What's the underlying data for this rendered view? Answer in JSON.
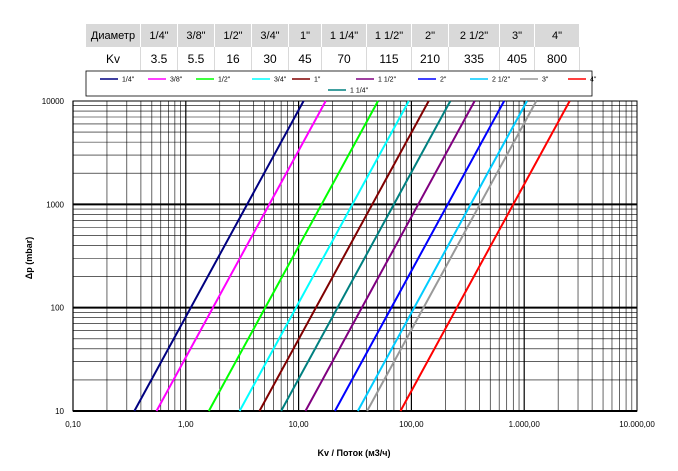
{
  "table": {
    "row_headers": [
      "Диаметр",
      "Kv"
    ],
    "sizes": [
      "1/4\"",
      "3/8\"",
      "1/2\"",
      "3/4\"",
      "1\"",
      "1 1/4\"",
      "1 1/2\"",
      "2\"",
      "2 1/2\"",
      "3\"",
      "4\""
    ],
    "kv": [
      "3.5",
      "5.5",
      "16",
      "30",
      "45",
      "70",
      "115",
      "210",
      "335",
      "405",
      "800"
    ]
  },
  "chart_data": {
    "type": "line",
    "xlabel": "Kv / Поток (м3/ч)",
    "ylabel": "Δp (mbar)",
    "x_scale": "log",
    "y_scale": "log",
    "xlim": [
      0.1,
      10000
    ],
    "ylim": [
      10,
      10000
    ],
    "x_tick_labels": [
      "0,10",
      "1,00",
      "10,00",
      "100,00",
      "1.000,00",
      "10.000,00"
    ],
    "y_tick_labels": [
      "10",
      "100",
      "1000",
      "10000"
    ],
    "grid": true,
    "legend_position": "top",
    "series": [
      {
        "name": "1/4\"",
        "color": "#000080",
        "x": [
          0.35,
          3.5
        ],
        "y": [
          10,
          1000
        ]
      },
      {
        "name": "3/8\"",
        "color": "#ff00ff",
        "x": [
          0.55,
          5.5
        ],
        "y": [
          10,
          1000
        ]
      },
      {
        "name": "1/2\"",
        "color": "#00ff00",
        "x": [
          1.6,
          16
        ],
        "y": [
          10,
          1000
        ]
      },
      {
        "name": "3/4\"",
        "color": "#00ffff",
        "x": [
          3,
          30
        ],
        "y": [
          10,
          1000
        ]
      },
      {
        "name": "1\"",
        "color": "#800000",
        "x": [
          4.5,
          45
        ],
        "y": [
          10,
          1000
        ]
      },
      {
        "name": "1 1/4\"",
        "color": "#008080",
        "x": [
          7,
          70
        ],
        "y": [
          10,
          1000
        ]
      },
      {
        "name": "1 1/2\"",
        "color": "#800080",
        "x": [
          11.5,
          115
        ],
        "y": [
          10,
          1000
        ]
      },
      {
        "name": "2\"",
        "color": "#0000ff",
        "x": [
          21,
          210
        ],
        "y": [
          10,
          1000
        ]
      },
      {
        "name": "2 1/2\"",
        "color": "#00ccff",
        "x": [
          33.5,
          335
        ],
        "y": [
          10,
          1000
        ]
      },
      {
        "name": "3\"",
        "color": "#999999",
        "x": [
          40.5,
          405
        ],
        "y": [
          10,
          1000
        ]
      },
      {
        "name": "4\"",
        "color": "#ff0000",
        "x": [
          80,
          800
        ],
        "y": [
          10,
          1000
        ]
      }
    ]
  }
}
